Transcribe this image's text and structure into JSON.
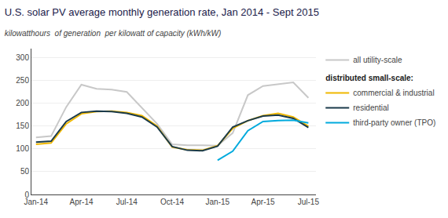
{
  "chart_data": {
    "type": "line",
    "title": "U.S. solar PV average monthly generation rate, Jan 2014 - Sept 2015",
    "subtitle": "kilowatthours  of generation  per kilowatt of capacity (kWh/kW)",
    "categories": [
      "Jan-14",
      null,
      null,
      "Apr-14",
      null,
      null,
      "Jul-14",
      null,
      null,
      "Oct-14",
      null,
      null,
      "Jan-15",
      null,
      null,
      "Apr-15",
      null,
      null,
      "Jul-15"
    ],
    "series": [
      {
        "name": "all utility-scale",
        "color": "#c8c8c8",
        "values": [
          125,
          128,
          192,
          241,
          232,
          230,
          225,
          190,
          155,
          110,
          108,
          108,
          107,
          135,
          218,
          238,
          242,
          246,
          212
        ]
      },
      {
        "name": "commercial & industrial",
        "color": "#f0b800",
        "values": [
          110,
          113,
          155,
          177,
          182,
          183,
          180,
          173,
          150,
          104,
          98,
          97,
          107,
          145,
          162,
          173,
          178,
          170,
          150
        ]
      },
      {
        "name": "residential",
        "color": "#1a3a4a",
        "values": [
          115,
          117,
          160,
          180,
          183,
          182,
          178,
          170,
          148,
          105,
          97,
          96,
          106,
          148,
          162,
          172,
          174,
          167,
          147
        ]
      },
      {
        "name": "third-party owner (TPO)",
        "color": "#00aadd",
        "values": [
          null,
          null,
          null,
          null,
          null,
          null,
          null,
          null,
          null,
          null,
          null,
          null,
          75,
          95,
          140,
          160,
          162,
          163,
          157
        ]
      }
    ],
    "xlim": [
      -0.3,
      18.5
    ],
    "ylim": [
      0,
      320
    ],
    "yticks": [
      0,
      50,
      100,
      150,
      200,
      250,
      300
    ],
    "grid": true,
    "legend": "right",
    "annotations": [
      "distributed small-scale:"
    ]
  }
}
